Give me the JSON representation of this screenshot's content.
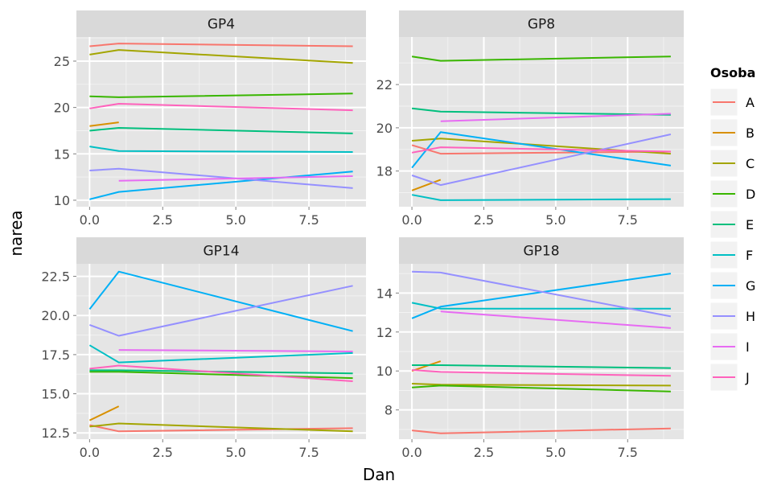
{
  "chart_data": {
    "type": "line",
    "xlabel": "Dan",
    "ylabel": "narea",
    "legend": {
      "title": "Osoba",
      "placement": "right",
      "entries": [
        "A",
        "B",
        "C",
        "D",
        "E",
        "F",
        "G",
        "H",
        "I",
        "J"
      ]
    },
    "colors": {
      "A": "#F8766D",
      "B": "#D89000",
      "C": "#A3A500",
      "D": "#39B600",
      "E": "#00BF7D",
      "F": "#00BFC4",
      "G": "#00B0F6",
      "H": "#9590FF",
      "I": "#E76BF3",
      "J": "#FF62BC"
    },
    "grid": true,
    "panels": [
      {
        "title": "GP4",
        "xlim": [
          -0.45,
          9.45
        ],
        "ylim": [
          9.3,
          27.6
        ],
        "xticks": [
          0,
          2.5,
          5,
          7.5
        ],
        "xtick_labels": [
          "0.0",
          "2.5",
          "5.0",
          "7.5"
        ],
        "yticks": [
          10,
          15,
          20,
          25
        ],
        "ytick_labels": [
          "10",
          "15",
          "20",
          "25"
        ],
        "series": [
          {
            "name": "A",
            "x": [
              0,
              1,
              9
            ],
            "y": [
              26.6,
              26.9,
              26.6
            ]
          },
          {
            "name": "B",
            "x": [
              0,
              1
            ],
            "y": [
              18.0,
              18.4
            ]
          },
          {
            "name": "C",
            "x": [
              0,
              1,
              9
            ],
            "y": [
              25.7,
              26.2,
              24.8
            ]
          },
          {
            "name": "D",
            "x": [
              0,
              1,
              9
            ],
            "y": [
              21.2,
              21.1,
              21.5
            ]
          },
          {
            "name": "E",
            "x": [
              0,
              1,
              9
            ],
            "y": [
              17.5,
              17.8,
              17.2
            ]
          },
          {
            "name": "F",
            "x": [
              0,
              1,
              9
            ],
            "y": [
              15.8,
              15.3,
              15.2
            ]
          },
          {
            "name": "G",
            "x": [
              0,
              1,
              9
            ],
            "y": [
              10.1,
              10.9,
              13.1
            ]
          },
          {
            "name": "H",
            "x": [
              0,
              1,
              9
            ],
            "y": [
              13.2,
              13.4,
              11.3
            ]
          },
          {
            "name": "I",
            "x": [
              1,
              9
            ],
            "y": [
              12.1,
              12.6
            ]
          },
          {
            "name": "J",
            "x": [
              0,
              1,
              9
            ],
            "y": [
              19.9,
              20.4,
              19.7
            ]
          }
        ]
      },
      {
        "title": "GP8",
        "xlim": [
          -0.45,
          9.45
        ],
        "ylim": [
          16.35,
          24.2
        ],
        "xticks": [
          0,
          2.5,
          5,
          7.5
        ],
        "xtick_labels": [
          "0.0",
          "2.5",
          "5.0",
          "7.5"
        ],
        "yticks": [
          18,
          20,
          22
        ],
        "ytick_labels": [
          "18",
          "20",
          "22"
        ],
        "series": [
          {
            "name": "A",
            "x": [
              0,
              1,
              9
            ],
            "y": [
              19.2,
              18.8,
              18.9
            ]
          },
          {
            "name": "B",
            "x": [
              0,
              1
            ],
            "y": [
              17.1,
              17.6
            ]
          },
          {
            "name": "C",
            "x": [
              0,
              1,
              9
            ],
            "y": [
              19.4,
              19.5,
              18.8
            ]
          },
          {
            "name": "D",
            "x": [
              0,
              1,
              9
            ],
            "y": [
              23.3,
              23.1,
              23.3
            ]
          },
          {
            "name": "E",
            "x": [
              0,
              1,
              9
            ],
            "y": [
              20.9,
              20.75,
              20.6
            ]
          },
          {
            "name": "F",
            "x": [
              0,
              1,
              9
            ],
            "y": [
              16.9,
              16.65,
              16.7
            ]
          },
          {
            "name": "G",
            "x": [
              0,
              1,
              9
            ],
            "y": [
              18.15,
              19.8,
              18.25
            ]
          },
          {
            "name": "H",
            "x": [
              0,
              1,
              9
            ],
            "y": [
              17.8,
              17.35,
              19.7
            ]
          },
          {
            "name": "I",
            "x": [
              1,
              9
            ],
            "y": [
              20.3,
              20.65
            ]
          },
          {
            "name": "J",
            "x": [
              0,
              1,
              9
            ],
            "y": [
              18.85,
              19.1,
              18.9
            ]
          }
        ]
      },
      {
        "title": "GP14",
        "xlim": [
          -0.45,
          9.45
        ],
        "ylim": [
          12.1,
          23.3
        ],
        "xticks": [
          0,
          2.5,
          5,
          7.5
        ],
        "xtick_labels": [
          "0.0",
          "2.5",
          "5.0",
          "7.5"
        ],
        "yticks": [
          12.5,
          15,
          17.5,
          20,
          22.5
        ],
        "ytick_labels": [
          "12.5",
          "15.0",
          "17.5",
          "20.0",
          "22.5"
        ],
        "series": [
          {
            "name": "A",
            "x": [
              0,
              1,
              9
            ],
            "y": [
              13.0,
              12.6,
              12.8
            ]
          },
          {
            "name": "B",
            "x": [
              0,
              1
            ],
            "y": [
              13.3,
              14.2
            ]
          },
          {
            "name": "C",
            "x": [
              0,
              1,
              9
            ],
            "y": [
              12.9,
              13.1,
              12.6
            ]
          },
          {
            "name": "D",
            "x": [
              0,
              1,
              9
            ],
            "y": [
              16.4,
              16.4,
              16.0
            ]
          },
          {
            "name": "E",
            "x": [
              0,
              1,
              9
            ],
            "y": [
              16.5,
              16.5,
              16.3
            ]
          },
          {
            "name": "F",
            "x": [
              0,
              1,
              9
            ],
            "y": [
              18.1,
              17.0,
              17.6
            ]
          },
          {
            "name": "G",
            "x": [
              0,
              1,
              9
            ],
            "y": [
              20.4,
              22.8,
              19.0
            ]
          },
          {
            "name": "H",
            "x": [
              0,
              1,
              9
            ],
            "y": [
              19.4,
              18.7,
              21.9
            ]
          },
          {
            "name": "I",
            "x": [
              1,
              9
            ],
            "y": [
              17.8,
              17.7
            ]
          },
          {
            "name": "J",
            "x": [
              0,
              1,
              9
            ],
            "y": [
              16.6,
              16.8,
              15.8
            ]
          }
        ]
      },
      {
        "title": "GP18",
        "xlim": [
          -0.45,
          9.45
        ],
        "ylim": [
          6.5,
          15.5
        ],
        "xticks": [
          0,
          2.5,
          5,
          7.5
        ],
        "xtick_labels": [
          "0.0",
          "2.5",
          "5.0",
          "7.5"
        ],
        "yticks": [
          8,
          10,
          12,
          14
        ],
        "ytick_labels": [
          "8",
          "10",
          "12",
          "14"
        ],
        "series": [
          {
            "name": "A",
            "x": [
              0,
              1,
              9
            ],
            "y": [
              6.95,
              6.8,
              7.05
            ]
          },
          {
            "name": "B",
            "x": [
              0,
              1
            ],
            "y": [
              10.0,
              10.5
            ]
          },
          {
            "name": "C",
            "x": [
              0,
              1,
              9
            ],
            "y": [
              9.35,
              9.3,
              9.25
            ]
          },
          {
            "name": "D",
            "x": [
              0,
              1,
              9
            ],
            "y": [
              9.15,
              9.25,
              8.95
            ]
          },
          {
            "name": "E",
            "x": [
              0,
              1,
              9
            ],
            "y": [
              10.3,
              10.3,
              10.15
            ]
          },
          {
            "name": "F",
            "x": [
              0,
              1,
              9
            ],
            "y": [
              13.5,
              13.2,
              13.2
            ]
          },
          {
            "name": "G",
            "x": [
              0,
              1,
              9
            ],
            "y": [
              12.7,
              13.3,
              15.0
            ]
          },
          {
            "name": "H",
            "x": [
              0,
              1,
              9
            ],
            "y": [
              15.1,
              15.05,
              12.8
            ]
          },
          {
            "name": "I",
            "x": [
              1,
              9
            ],
            "y": [
              13.05,
              12.2
            ]
          },
          {
            "name": "J",
            "x": [
              0,
              1,
              9
            ],
            "y": [
              10.05,
              9.95,
              9.75
            ]
          }
        ]
      }
    ]
  }
}
